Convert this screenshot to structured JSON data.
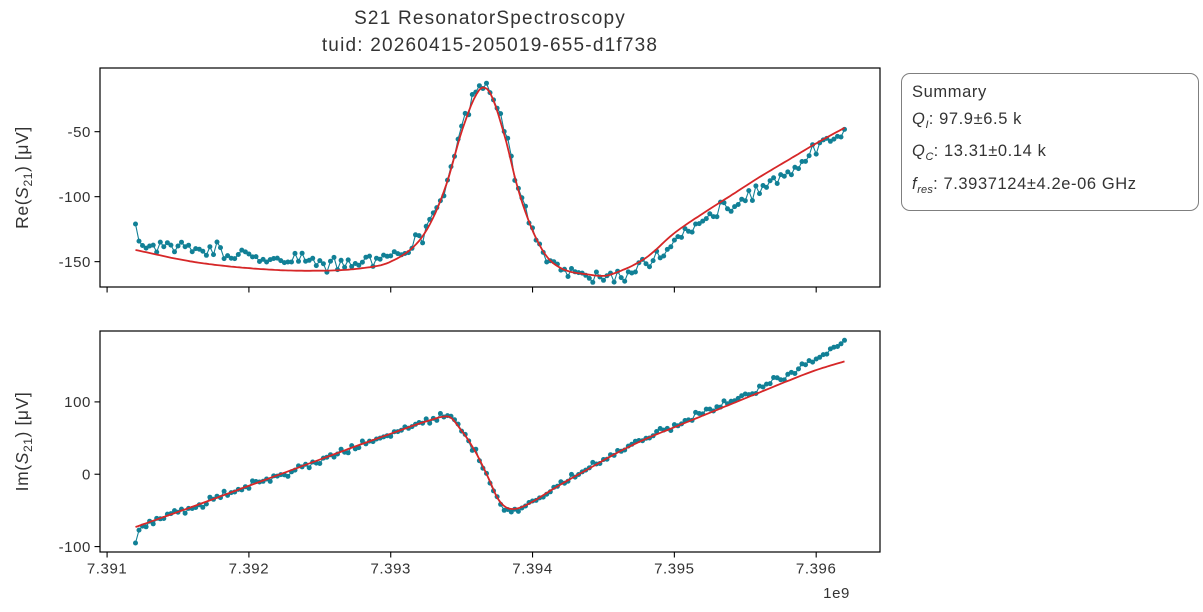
{
  "figure": {
    "title_line1": "S21 ResonatorSpectroscopy",
    "title_line2": "tuid: 20260415-205019-655-d1f738"
  },
  "summary": {
    "title": "Summary",
    "items": [
      {
        "symbol": "Q",
        "sub": "I",
        "value": ": 97.9±6.5 k"
      },
      {
        "symbol": "Q",
        "sub": "C",
        "value": ": 13.31±0.14 k"
      },
      {
        "symbol": "f",
        "sub": "res",
        "value": ": 7.3937124±4.2e-06 GHz"
      }
    ]
  },
  "colors": {
    "data": "#118096",
    "fit": "#d62728",
    "spine": "#000000",
    "text": "#333333",
    "summary_border": "#7f7f7f"
  },
  "chart_data": [
    {
      "type": "line",
      "subplot": "Re(S21) vs frequency",
      "ylabel": "Re(S21) [μV]",
      "ylabel_parts": {
        "prefix": "Re(",
        "symbol": "S",
        "subscript": "21",
        "suffix": ") [μV]"
      },
      "xlabel": "",
      "xlim": [
        7.39095,
        7.39645
      ],
      "ylim": [
        -169.5,
        -1.0
      ],
      "xticks": [
        7.391,
        7.392,
        7.393,
        7.394,
        7.395,
        7.396
      ],
      "xtick_labels": [
        "7.391",
        "7.392",
        "7.393",
        "7.394",
        "7.395",
        "7.396"
      ],
      "show_xtick_labels": false,
      "yticks": [
        -150,
        -100,
        -50
      ],
      "ytick_labels": [
        "-150",
        "-100",
        "-50"
      ],
      "grid": false,
      "legend": null,
      "series": [
        {
          "name": "measured data",
          "role": "data",
          "color": "#118096",
          "style": "scatter-line",
          "marker_radius": 2.5,
          "line_width": 1.1,
          "n_points": 201,
          "x_start": 7.3912,
          "x_end": 7.3962,
          "noise_sigma": 3.0,
          "noise_seed": 101,
          "outliers": [
            {
              "index": 0,
              "dy": 13
            }
          ],
          "anchors_x": [
            7.3912,
            7.3914,
            7.3916,
            7.3918,
            7.392,
            7.3922,
            7.3924,
            7.3926,
            7.3928,
            7.393,
            7.3931,
            7.3932,
            7.3933,
            7.3934,
            7.3935,
            7.3936,
            7.39365,
            7.3937,
            7.3938,
            7.3939,
            7.394,
            7.3941,
            7.3942,
            7.3944,
            7.3945,
            7.3946,
            7.3948,
            7.395,
            7.3952,
            7.3954,
            7.3956,
            7.3958,
            7.396,
            7.3961,
            7.3962
          ],
          "anchors_y": [
            -134,
            -137,
            -140,
            -143,
            -146,
            -148,
            -149,
            -150,
            -149,
            -145,
            -140,
            -131,
            -113,
            -85,
            -48,
            -20,
            -13,
            -18,
            -50,
            -93,
            -125,
            -147,
            -156,
            -162,
            -164,
            -161,
            -152,
            -134,
            -120,
            -107,
            -94,
            -80,
            -64,
            -58,
            -54
          ]
        },
        {
          "name": "fit",
          "role": "fit",
          "color": "#d62728",
          "style": "line",
          "line_width": 1.8,
          "anchors_x": [
            7.3912,
            7.3916,
            7.392,
            7.3924,
            7.3928,
            7.393,
            7.3932,
            7.3933,
            7.3934,
            7.3935,
            7.3936,
            7.39365,
            7.3937,
            7.3938,
            7.3939,
            7.394,
            7.3941,
            7.3942,
            7.3944,
            7.3945,
            7.3946,
            7.3948,
            7.395,
            7.3952,
            7.3954,
            7.3956,
            7.3958,
            7.396,
            7.3962
          ],
          "anchors_y": [
            -141,
            -150,
            -155,
            -157,
            -155,
            -150,
            -134,
            -116,
            -88,
            -50,
            -22,
            -16,
            -20,
            -52,
            -95,
            -126,
            -146,
            -155,
            -160,
            -161,
            -158,
            -147,
            -128,
            -113,
            -99,
            -85,
            -72,
            -59,
            -47
          ]
        }
      ]
    },
    {
      "type": "line",
      "subplot": "Im(S21) vs frequency",
      "ylabel": "Im(S21) [μV]",
      "ylabel_parts": {
        "prefix": "Im(",
        "symbol": "S",
        "subscript": "21",
        "suffix": ") [μV]"
      },
      "xlabel": "",
      "x_offset_text": "1e9",
      "xlim": [
        7.39095,
        7.39645
      ],
      "ylim": [
        -107.5,
        198.0
      ],
      "xticks": [
        7.391,
        7.392,
        7.393,
        7.394,
        7.395,
        7.396
      ],
      "xtick_labels": [
        "7.391",
        "7.392",
        "7.393",
        "7.394",
        "7.395",
        "7.396"
      ],
      "show_xtick_labels": true,
      "yticks": [
        -100,
        0,
        100
      ],
      "ytick_labels": [
        "-100",
        "0",
        "100"
      ],
      "grid": false,
      "legend": null,
      "series": [
        {
          "name": "measured data",
          "role": "data",
          "color": "#118096",
          "style": "scatter-line",
          "marker_radius": 2.5,
          "line_width": 1.1,
          "n_points": 201,
          "x_start": 7.3912,
          "x_end": 7.3962,
          "noise_sigma": 2.4,
          "noise_seed": 202,
          "outliers": [
            {
              "index": 0,
              "dy": -19
            }
          ],
          "anchors_x": [
            7.3912,
            7.3916,
            7.392,
            7.3924,
            7.3928,
            7.393,
            7.3932,
            7.3933,
            7.39335,
            7.3934,
            7.3935,
            7.3936,
            7.3937,
            7.39375,
            7.3938,
            7.39385,
            7.3939,
            7.394,
            7.3941,
            7.3942,
            7.3944,
            7.3946,
            7.3948,
            7.395,
            7.3952,
            7.3954,
            7.3956,
            7.3958,
            7.396,
            7.3961,
            7.3962
          ],
          "anchors_y": [
            -76,
            -46,
            -17,
            12,
            41,
            55,
            70,
            76,
            79,
            80,
            61,
            30,
            -10,
            -33,
            -46,
            -50,
            -48,
            -38,
            -26,
            -14,
            9,
            31,
            50,
            67,
            84,
            101,
            119,
            139,
            159,
            171,
            182
          ]
        },
        {
          "name": "fit",
          "role": "fit",
          "color": "#d62728",
          "style": "line",
          "line_width": 1.8,
          "anchors_x": [
            7.3912,
            7.3916,
            7.392,
            7.3924,
            7.3928,
            7.393,
            7.3932,
            7.3933,
            7.39335,
            7.3934,
            7.3935,
            7.3936,
            7.3937,
            7.39375,
            7.3938,
            7.39385,
            7.3939,
            7.394,
            7.3941,
            7.3942,
            7.3944,
            7.3946,
            7.3948,
            7.395,
            7.3952,
            7.3954,
            7.3956,
            7.3958,
            7.396,
            7.3962
          ],
          "anchors_y": [
            -73,
            -45,
            -16,
            13,
            42,
            56,
            70,
            76,
            79,
            80,
            60,
            30,
            -10,
            -32,
            -44,
            -48,
            -47,
            -38,
            -26,
            -14,
            8,
            30,
            49,
            65,
            81,
            97,
            113,
            129,
            144,
            156
          ]
        }
      ]
    }
  ]
}
